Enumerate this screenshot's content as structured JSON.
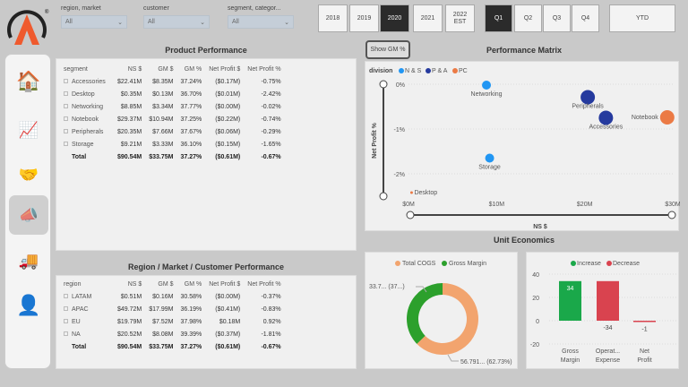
{
  "filters": [
    {
      "label": "region, market",
      "value": "All"
    },
    {
      "label": "customer",
      "value": "All"
    },
    {
      "label": "segment, categor...",
      "value": "All"
    }
  ],
  "years": [
    "2018",
    "2019",
    "2020",
    "2021",
    "2022 EST"
  ],
  "selected_year": "2020",
  "quarters": [
    "Q1",
    "Q2",
    "Q3",
    "Q4"
  ],
  "selected_quarter": "Q1",
  "ytd": "YTD",
  "nav": [
    "home-icon",
    "growth-chart-icon",
    "deal-handshake-icon",
    "marketing-megaphone-icon",
    "supply-chain-icon",
    "executive-person-icon"
  ],
  "nav_selected": 3,
  "product": {
    "title": "Product Performance",
    "headers": [
      "segment",
      "NS $",
      "GM $",
      "GM %",
      "Net Profit $",
      "Net Profit %"
    ],
    "rows": [
      [
        "Accessories",
        "$22.41M",
        "$8.35M",
        "37.24%",
        "($0.17M)",
        "-0.75%"
      ],
      [
        "Desktop",
        "$0.35M",
        "$0.13M",
        "36.70%",
        "($0.01M)",
        "-2.42%"
      ],
      [
        "Networking",
        "$8.85M",
        "$3.34M",
        "37.77%",
        "($0.00M)",
        "-0.02%"
      ],
      [
        "Notebook",
        "$29.37M",
        "$10.94M",
        "37.25%",
        "($0.22M)",
        "-0.74%"
      ],
      [
        "Peripherals",
        "$20.35M",
        "$7.66M",
        "37.67%",
        "($0.06M)",
        "-0.29%"
      ],
      [
        "Storage",
        "$9.21M",
        "$3.33M",
        "36.10%",
        "($0.15M)",
        "-1.65%"
      ]
    ],
    "total": [
      "Total",
      "$90.54M",
      "$33.75M",
      "37.27%",
      "($0.61M)",
      "-0.67%"
    ]
  },
  "region": {
    "title": "Region / Market / Customer Performance",
    "headers": [
      "region",
      "NS $",
      "GM $",
      "GM %",
      "Net Profit $",
      "Net Profit %"
    ],
    "rows": [
      [
        "LATAM",
        "$0.51M",
        "$0.16M",
        "30.58%",
        "($0.00M)",
        "-0.37%"
      ],
      [
        "APAC",
        "$49.72M",
        "$17.99M",
        "36.19%",
        "($0.41M)",
        "-0.83%"
      ],
      [
        "EU",
        "$19.79M",
        "$7.52M",
        "37.98%",
        "$0.18M",
        "0.92%"
      ],
      [
        "NA",
        "$20.52M",
        "$8.08M",
        "39.39%",
        "($0.37M)",
        "-1.81%"
      ]
    ],
    "total": [
      "Total",
      "$90.54M",
      "$33.75M",
      "37.27%",
      "($0.61M)",
      "-0.67%"
    ]
  },
  "show_gm": "Show GM %",
  "unit_title": "Unit Economics",
  "chart_data": [
    {
      "type": "scatter",
      "title": "Performance Matrix",
      "xlabel": "NS $",
      "ylabel": "Net Profit %",
      "legend_title": "division",
      "legend_position": "top-left",
      "series": [
        {
          "name": "N & S",
          "color": "#2196f3"
        },
        {
          "name": "P & A",
          "color": "#253a9e"
        },
        {
          "name": "PC",
          "color": "#eb7a45"
        }
      ],
      "points": [
        {
          "label": "Networking",
          "series": "N & S",
          "x": 8.85,
          "y": -0.02
        },
        {
          "label": "Storage",
          "series": "N & S",
          "x": 9.21,
          "y": -1.65
        },
        {
          "label": "Peripherals",
          "series": "P & A",
          "x": 20.35,
          "y": -0.29
        },
        {
          "label": "Accessories",
          "series": "P & A",
          "x": 22.41,
          "y": -0.75
        },
        {
          "label": "Notebook",
          "series": "PC",
          "x": 29.37,
          "y": -0.74
        },
        {
          "label": "Desktop",
          "series": "PC",
          "x": 0.35,
          "y": -2.42
        }
      ],
      "xticks": [
        "$0M",
        "$10M",
        "$20M",
        "$30M"
      ],
      "xlim": [
        0,
        30
      ],
      "yticks": [
        "0%",
        "-1%",
        "-2%"
      ],
      "ylim": [
        -2.5,
        0
      ]
    },
    {
      "type": "pie",
      "donut": true,
      "legend_position": "top",
      "slices": [
        {
          "name": "Total COGS",
          "value": 62.73,
          "label": "56.791... (62.73%)",
          "color": "#f2a46e"
        },
        {
          "name": "Gross Margin",
          "value": 37.27,
          "label": "33.7... (37...)",
          "color": "#2ca02c"
        }
      ]
    },
    {
      "type": "bar",
      "subtype": "waterfall",
      "legend": [
        {
          "name": "Increase",
          "color": "#1aa84a"
        },
        {
          "name": "Decrease",
          "color": "#d9434f"
        }
      ],
      "categories": [
        "Gross Margin",
        "Operat... Expense",
        "Net Profit"
      ],
      "values": [
        34,
        -34,
        -1
      ],
      "data_labels": [
        "34",
        "-34",
        "-1"
      ],
      "yticks": [
        "40",
        "20",
        "0",
        "-20"
      ],
      "ylim": [
        -20,
        40
      ]
    }
  ]
}
